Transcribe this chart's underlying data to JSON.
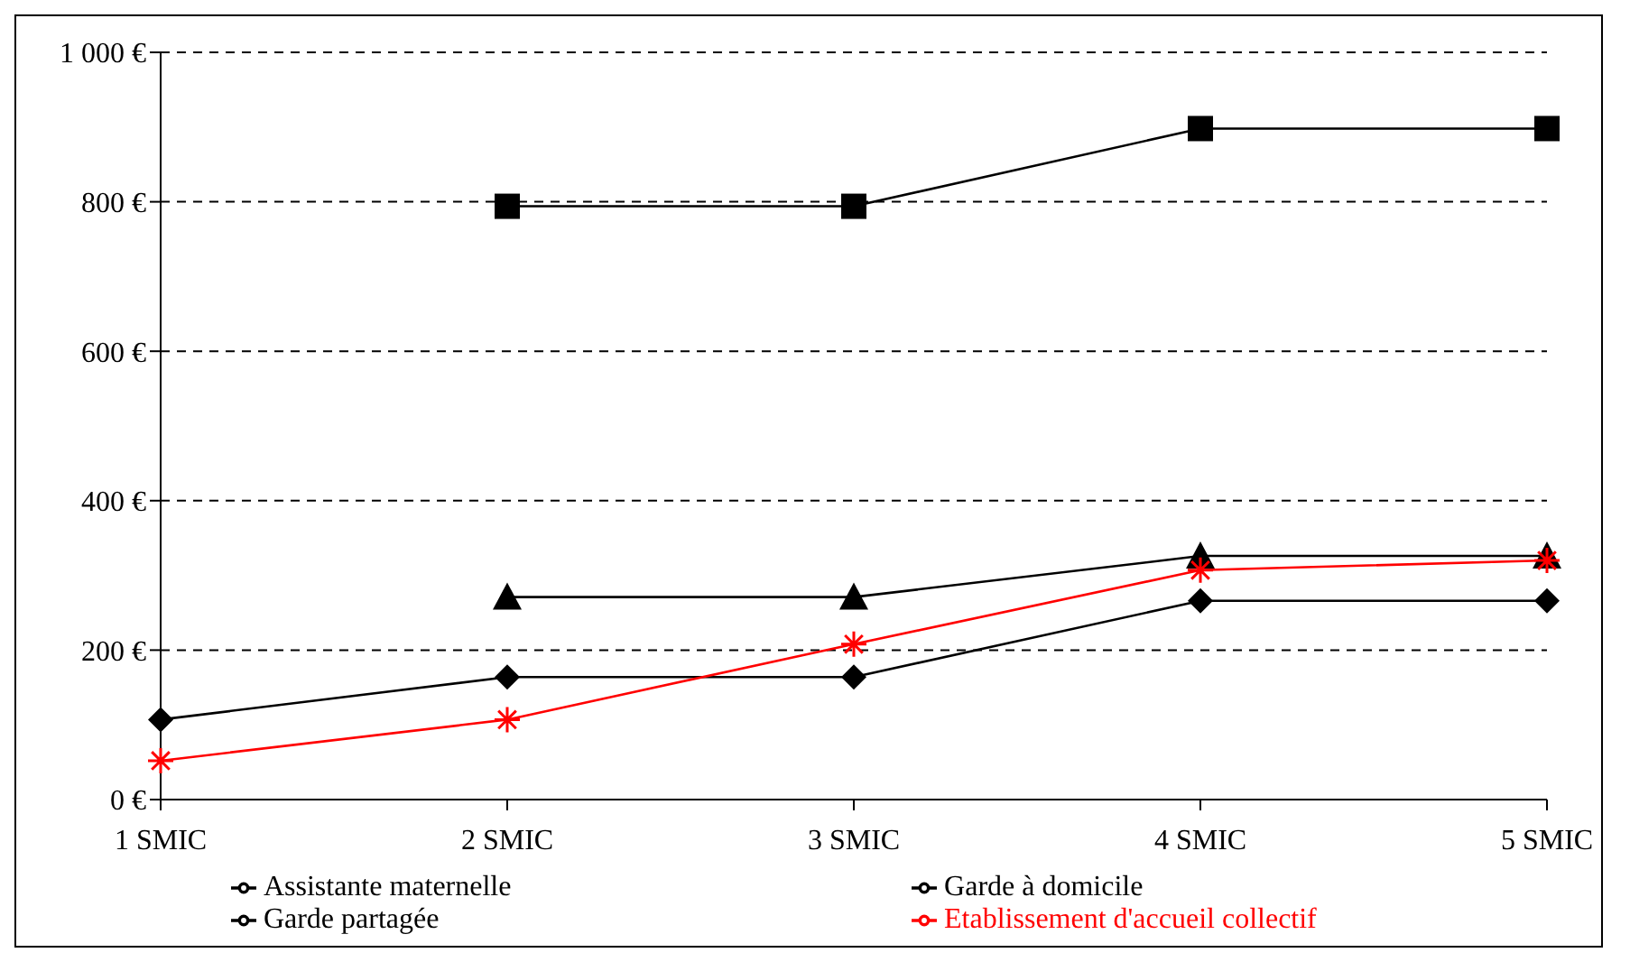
{
  "chart_data": {
    "type": "line",
    "categories": [
      "1 SMIC",
      "2 SMIC",
      "3 SMIC",
      "4 SMIC",
      "5 SMIC"
    ],
    "series": [
      {
        "name": "Assistante maternelle",
        "color": "#000000",
        "marker": "diamond",
        "values": [
          107,
          164,
          164,
          266,
          266
        ]
      },
      {
        "name": "Garde à domicile",
        "color": "#000000",
        "marker": "square",
        "values": [
          null,
          794,
          794,
          898,
          898
        ]
      },
      {
        "name": "Garde partagée",
        "color": "#000000",
        "marker": "triangle",
        "values": [
          null,
          271,
          271,
          326,
          326
        ]
      },
      {
        "name": "Etablissement d'accueil collectif",
        "color": "#ff0000",
        "marker": "cross",
        "values": [
          52,
          107,
          208,
          307,
          320
        ]
      }
    ],
    "ylim": [
      0,
      1000
    ],
    "yticks": [
      {
        "value": 0,
        "label": "0 €"
      },
      {
        "value": 200,
        "label": "200 €"
      },
      {
        "value": 400,
        "label": "400 €"
      },
      {
        "value": 600,
        "label": "600 €"
      },
      {
        "value": 800,
        "label": "800 €"
      },
      {
        "value": 1000,
        "label": "1 000 €"
      }
    ],
    "grid": "y",
    "legend": "bottom",
    "line_style": "solid"
  }
}
